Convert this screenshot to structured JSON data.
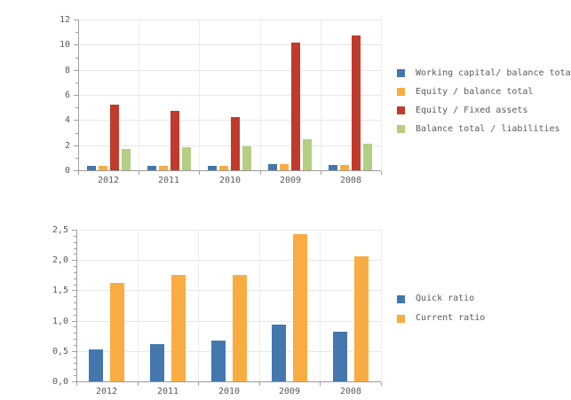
{
  "chart_data": [
    {
      "type": "bar",
      "title": "",
      "xlabel": "",
      "ylabel": "",
      "categories": [
        "2012",
        "2011",
        "2010",
        "2009",
        "2008"
      ],
      "series": [
        {
          "name": "Working capital/ balance total",
          "color": "#4377ae",
          "values": [
            0.35,
            0.35,
            0.35,
            0.5,
            0.45
          ]
        },
        {
          "name": "Equity / balance total",
          "color": "#f9ac42",
          "values": [
            0.35,
            0.35,
            0.35,
            0.5,
            0.45
          ]
        },
        {
          "name": "Equity / Fixed assets",
          "color": "#c13a2b",
          "values": [
            5.2,
            4.7,
            4.2,
            10.2,
            10.75
          ]
        },
        {
          "name": "Balance total / liabilities",
          "color": "#b4ce82",
          "values": [
            1.7,
            1.85,
            1.9,
            2.5,
            2.1
          ]
        }
      ],
      "ylim": [
        0,
        12
      ],
      "yticks": [
        {
          "value": 0,
          "label": "0"
        },
        {
          "value": 2,
          "label": "2"
        },
        {
          "value": 4,
          "label": "4"
        },
        {
          "value": 6,
          "label": "6"
        },
        {
          "value": 8,
          "label": "8"
        },
        {
          "value": 10,
          "label": "10"
        },
        {
          "value": 12,
          "label": "12"
        }
      ],
      "major_tick_step": 2,
      "minor_tick_step": 1,
      "grid": true,
      "legend_position": "right"
    },
    {
      "type": "bar",
      "title": "",
      "xlabel": "",
      "ylabel": "",
      "categories": [
        "2012",
        "2011",
        "2010",
        "2009",
        "2008"
      ],
      "series": [
        {
          "name": "Quick ratio",
          "color": "#4377ae",
          "values": [
            0.53,
            0.61,
            0.67,
            0.93,
            0.82
          ]
        },
        {
          "name": "Current ratio",
          "color": "#f9ac42",
          "values": [
            1.63,
            1.75,
            1.75,
            2.43,
            2.06
          ]
        }
      ],
      "ylim": [
        0,
        2.5
      ],
      "yticks": [
        {
          "value": 0,
          "label": "0,0"
        },
        {
          "value": 0.5,
          "label": "0,5"
        },
        {
          "value": 1,
          "label": "1,0"
        },
        {
          "value": 1.5,
          "label": "1,5"
        },
        {
          "value": 2,
          "label": "2,0"
        },
        {
          "value": 2.5,
          "label": "2,5"
        }
      ],
      "major_tick_step": 0.5,
      "minor_tick_step": 0.1,
      "grid": true,
      "legend_position": "right"
    }
  ],
  "colors": {
    "grid_h": "#e7e7e7",
    "grid_v": "#ededed",
    "axis": "#a0a0a0",
    "label_text": "#5a5a5a",
    "background": "#ffffff"
  }
}
